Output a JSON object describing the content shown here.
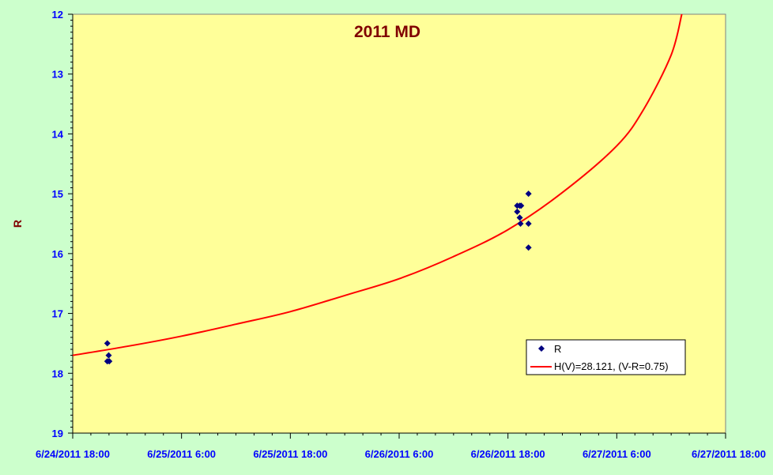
{
  "chart_data": {
    "type": "scatter",
    "title": "2011 MD",
    "ylabel": "R",
    "xlabel": "",
    "x_axis_type": "datetime",
    "xlim": [
      "2011-06-24T18:00",
      "2011-06-27T18:00"
    ],
    "x_ticks": [
      "6/24/2011 18:00",
      "6/25/2011 6:00",
      "6/25/2011 18:00",
      "6/26/2011 6:00",
      "6/26/2011 18:00",
      "6/27/2011 6:00",
      "6/27/2011 18:00"
    ],
    "ylim": [
      12,
      19
    ],
    "y_reversed": true,
    "y_ticks": [
      "12",
      "13",
      "14",
      "15",
      "16",
      "17",
      "18",
      "19"
    ],
    "grid": false,
    "legend_position": "lower-right",
    "colors": {
      "page_background": "#ccffcc",
      "plot_background": "#ffff99",
      "title": "#800000",
      "axis_label": "#800000",
      "tick_labels": "#0000ff",
      "points": "#000080",
      "curve": "#ff0000"
    },
    "series": [
      {
        "name": "R",
        "kind": "scatter",
        "marker": "diamond",
        "points": [
          {
            "x": "2011-06-24T21:49",
            "y": 17.5
          },
          {
            "x": "2011-06-24T21:49",
            "y": 17.8
          },
          {
            "x": "2011-06-24T21:58",
            "y": 17.7
          },
          {
            "x": "2011-06-24T22:02",
            "y": 17.8
          },
          {
            "x": "2011-06-26T19:01",
            "y": 15.2
          },
          {
            "x": "2011-06-26T19:01",
            "y": 15.3
          },
          {
            "x": "2011-06-26T19:18",
            "y": 15.2
          },
          {
            "x": "2011-06-26T19:18",
            "y": 15.4
          },
          {
            "x": "2011-06-26T19:23",
            "y": 15.5
          },
          {
            "x": "2011-06-26T19:27",
            "y": 15.2
          },
          {
            "x": "2011-06-26T20:16",
            "y": 15.0
          },
          {
            "x": "2011-06-26T20:16",
            "y": 15.5
          },
          {
            "x": "2011-06-26T20:16",
            "y": 15.9
          }
        ]
      },
      {
        "name": "H(V)=28.121, (V-R=0.75)",
        "kind": "line",
        "points": [
          {
            "x": "2011-06-24T18:00",
            "y": 17.7
          },
          {
            "x": "2011-06-25T00:00",
            "y": 17.55
          },
          {
            "x": "2011-06-25T06:00",
            "y": 17.38
          },
          {
            "x": "2011-06-25T12:00",
            "y": 17.18
          },
          {
            "x": "2011-06-25T18:00",
            "y": 16.97
          },
          {
            "x": "2011-06-26T00:00",
            "y": 16.7
          },
          {
            "x": "2011-06-26T06:00",
            "y": 16.42
          },
          {
            "x": "2011-06-26T12:00",
            "y": 16.05
          },
          {
            "x": "2011-06-26T18:00",
            "y": 15.6
          },
          {
            "x": "2011-06-27T00:00",
            "y": 14.98
          },
          {
            "x": "2011-06-27T06:00",
            "y": 14.2
          },
          {
            "x": "2011-06-27T09:00",
            "y": 13.58
          },
          {
            "x": "2011-06-27T12:00",
            "y": 12.68
          },
          {
            "x": "2011-06-27T13:10",
            "y": 12.0
          }
        ]
      }
    ]
  }
}
